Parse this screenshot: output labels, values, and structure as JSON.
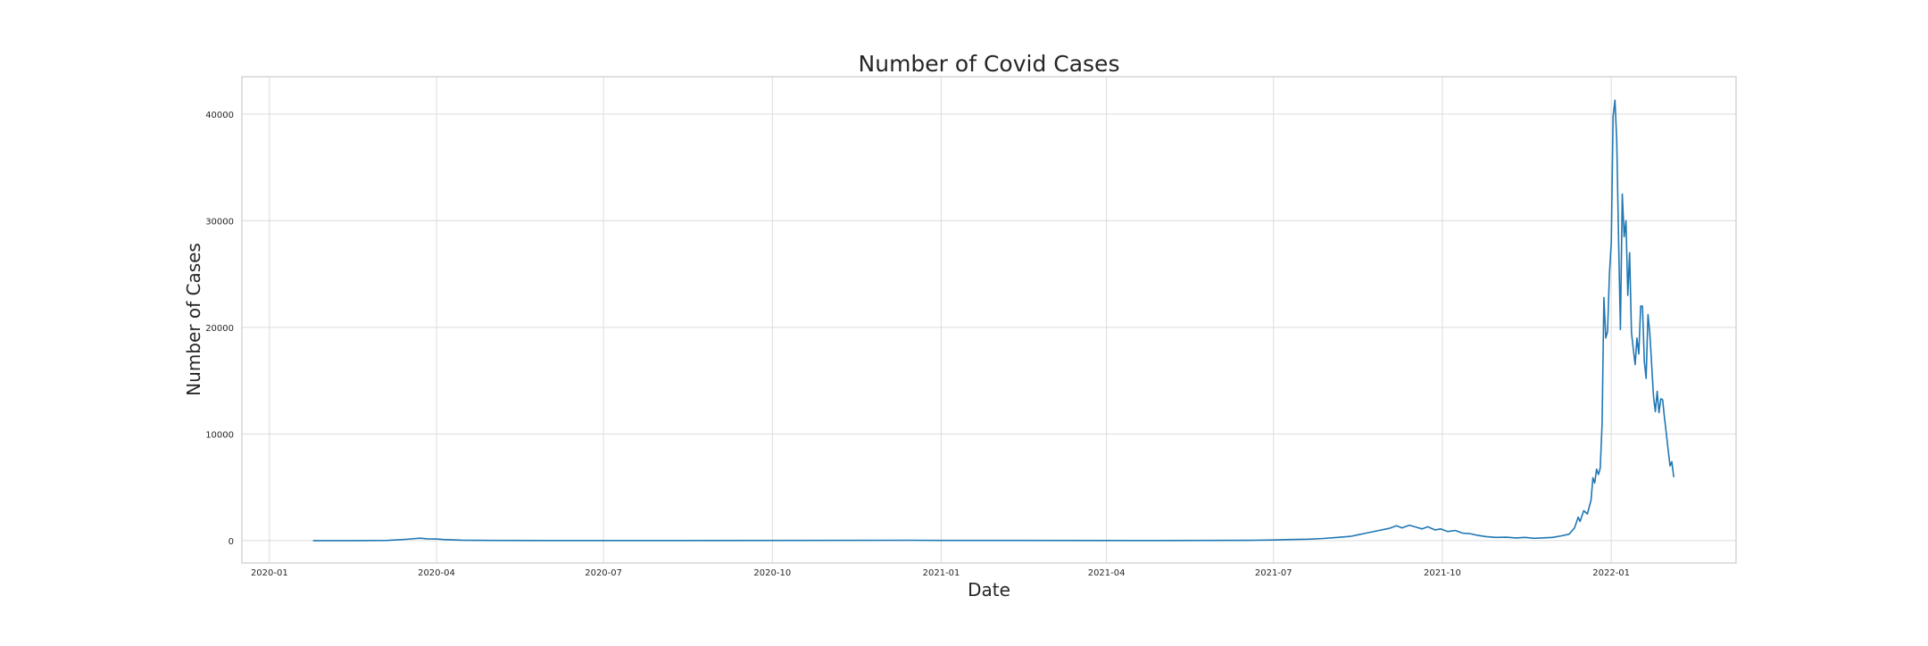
{
  "chart_data": {
    "type": "line",
    "title": "Number of Covid Cases",
    "xlabel": "Date",
    "ylabel": "Number of Cases",
    "x_axis_type": "date",
    "xlim": [
      "2019-12-17",
      "2022-03-10"
    ],
    "ylim": [
      -2100,
      43500
    ],
    "grid": true,
    "x_ticks": [
      "2020-01",
      "2020-04",
      "2020-07",
      "2020-10",
      "2021-01",
      "2021-04",
      "2021-07",
      "2021-10",
      "2022-01"
    ],
    "y_ticks": [
      0,
      10000,
      20000,
      30000,
      40000
    ],
    "series": [
      {
        "color": "#1f77b4",
        "points": [
          [
            "2020-01-25",
            0
          ],
          [
            "2020-02-15",
            0
          ],
          [
            "2020-03-05",
            20
          ],
          [
            "2020-03-15",
            120
          ],
          [
            "2020-03-23",
            230
          ],
          [
            "2020-03-27",
            170
          ],
          [
            "2020-04-01",
            150
          ],
          [
            "2020-04-05",
            100
          ],
          [
            "2020-04-15",
            40
          ],
          [
            "2020-05-01",
            20
          ],
          [
            "2020-06-01",
            10
          ],
          [
            "2020-08-01",
            10
          ],
          [
            "2020-12-15",
            30
          ],
          [
            "2021-01-01",
            20
          ],
          [
            "2021-05-01",
            10
          ],
          [
            "2021-06-20",
            30
          ],
          [
            "2021-07-01",
            60
          ],
          [
            "2021-07-10",
            100
          ],
          [
            "2021-07-20",
            130
          ],
          [
            "2021-07-28",
            200
          ],
          [
            "2021-08-05",
            300
          ],
          [
            "2021-08-12",
            400
          ],
          [
            "2021-08-19",
            650
          ],
          [
            "2021-08-26",
            900
          ],
          [
            "2021-09-02",
            1150
          ],
          [
            "2021-09-06",
            1400
          ],
          [
            "2021-09-09",
            1200
          ],
          [
            "2021-09-13",
            1450
          ],
          [
            "2021-09-16",
            1300
          ],
          [
            "2021-09-20",
            1100
          ],
          [
            "2021-09-23",
            1300
          ],
          [
            "2021-09-27",
            1000
          ],
          [
            "2021-09-30",
            1100
          ],
          [
            "2021-10-04",
            850
          ],
          [
            "2021-10-08",
            950
          ],
          [
            "2021-10-12",
            700
          ],
          [
            "2021-10-16",
            650
          ],
          [
            "2021-10-20",
            500
          ],
          [
            "2021-10-25",
            380
          ],
          [
            "2021-10-30",
            300
          ],
          [
            "2021-11-05",
            320
          ],
          [
            "2021-11-10",
            250
          ],
          [
            "2021-11-15",
            300
          ],
          [
            "2021-11-20",
            220
          ],
          [
            "2021-11-25",
            260
          ],
          [
            "2021-11-30",
            300
          ],
          [
            "2021-12-05",
            450
          ],
          [
            "2021-12-09",
            600
          ],
          [
            "2021-12-12",
            1200
          ],
          [
            "2021-12-14",
            2200
          ],
          [
            "2021-12-15",
            1800
          ],
          [
            "2021-12-17",
            2800
          ],
          [
            "2021-12-19",
            2500
          ],
          [
            "2021-12-21",
            3800
          ],
          [
            "2021-12-22",
            5900
          ],
          [
            "2021-12-23",
            5400
          ],
          [
            "2021-12-24",
            6700
          ],
          [
            "2021-12-25",
            6200
          ],
          [
            "2021-12-26",
            6800
          ],
          [
            "2021-12-27",
            11000
          ],
          [
            "2021-12-28",
            22800
          ],
          [
            "2021-12-29",
            19000
          ],
          [
            "2021-12-30",
            19600
          ],
          [
            "2021-12-31",
            25000
          ],
          [
            "2022-01-01",
            28000
          ],
          [
            "2022-01-02",
            39800
          ],
          [
            "2022-01-03",
            41300
          ],
          [
            "2022-01-04",
            37500
          ],
          [
            "2022-01-05",
            28000
          ],
          [
            "2022-01-06",
            19800
          ],
          [
            "2022-01-07",
            32500
          ],
          [
            "2022-01-08",
            28500
          ],
          [
            "2022-01-09",
            30000
          ],
          [
            "2022-01-10",
            23000
          ],
          [
            "2022-01-11",
            27000
          ],
          [
            "2022-01-12",
            19500
          ],
          [
            "2022-01-13",
            18000
          ],
          [
            "2022-01-14",
            16500
          ],
          [
            "2022-01-15",
            19000
          ],
          [
            "2022-01-16",
            17500
          ],
          [
            "2022-01-17",
            22000
          ],
          [
            "2022-01-18",
            22000
          ],
          [
            "2022-01-19",
            16800
          ],
          [
            "2022-01-20",
            15200
          ],
          [
            "2022-01-21",
            21200
          ],
          [
            "2022-01-22",
            19500
          ],
          [
            "2022-01-23",
            16500
          ],
          [
            "2022-01-24",
            13500
          ],
          [
            "2022-01-25",
            12100
          ],
          [
            "2022-01-26",
            14000
          ],
          [
            "2022-01-27",
            12000
          ],
          [
            "2022-01-28",
            13300
          ],
          [
            "2022-01-29",
            13200
          ],
          [
            "2022-01-30",
            11500
          ],
          [
            "2022-01-31",
            10000
          ],
          [
            "2022-02-01",
            8500
          ],
          [
            "2022-02-02",
            7000
          ],
          [
            "2022-02-03",
            7400
          ],
          [
            "2022-02-04",
            6000
          ]
        ]
      }
    ]
  }
}
